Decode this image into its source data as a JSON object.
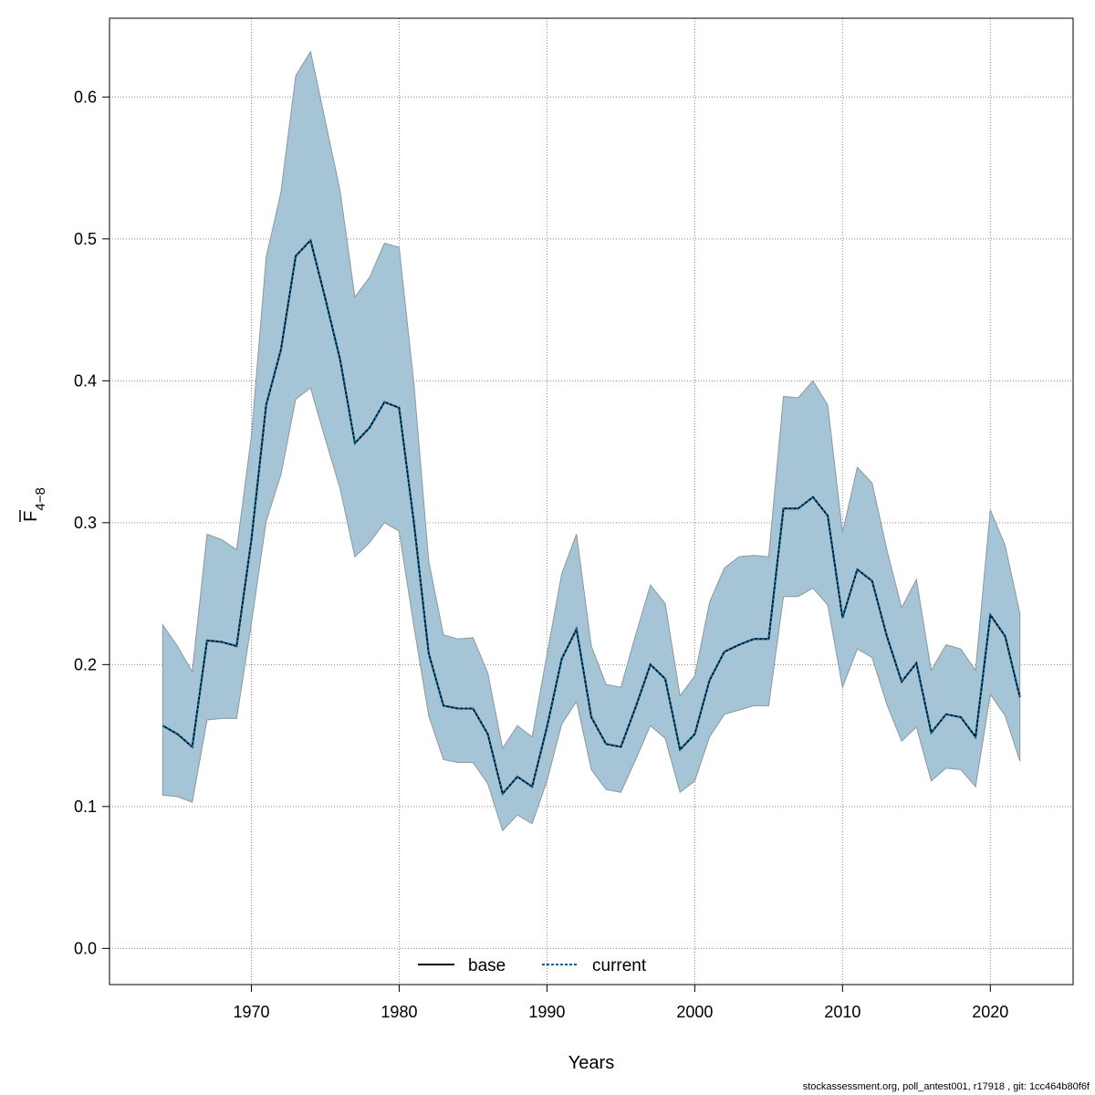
{
  "chart_data": {
    "type": "area",
    "xlabel": "Years",
    "ylabel_main": "F",
    "ylabel_sub": "4−8",
    "xlim": [
      1960.4,
      2025.6
    ],
    "ylim": [
      -0.0255,
      0.6555
    ],
    "xticks": [
      1970,
      1980,
      1990,
      2000,
      2010,
      2020
    ],
    "yticks": [
      0.0,
      0.1,
      0.2,
      0.3,
      0.4,
      0.5,
      0.6
    ],
    "grid": true,
    "band_color": "#a5c4d5",
    "band_edge_color": "#8a98a2",
    "x": [
      1964,
      1965,
      1966,
      1967,
      1968,
      1969,
      1970,
      1971,
      1972,
      1973,
      1974,
      1975,
      1976,
      1977,
      1978,
      1979,
      1980,
      1981,
      1982,
      1983,
      1984,
      1985,
      1986,
      1987,
      1988,
      1989,
      1990,
      1991,
      1992,
      1993,
      1994,
      1995,
      1996,
      1997,
      1998,
      1999,
      2000,
      2001,
      2002,
      2003,
      2004,
      2005,
      2006,
      2007,
      2008,
      2009,
      2010,
      2011,
      2012,
      2013,
      2014,
      2015,
      2016,
      2017,
      2018,
      2019,
      2020,
      2021,
      2022
    ],
    "series": [
      {
        "name": "base",
        "color": "#000000",
        "dash": "solid",
        "values": [
          0.157,
          0.151,
          0.142,
          0.217,
          0.216,
          0.213,
          0.288,
          0.383,
          0.422,
          0.488,
          0.499,
          0.458,
          0.415,
          0.356,
          0.367,
          0.385,
          0.381,
          0.3,
          0.208,
          0.171,
          0.169,
          0.169,
          0.151,
          0.109,
          0.121,
          0.114,
          0.156,
          0.204,
          0.225,
          0.163,
          0.144,
          0.142,
          0.17,
          0.2,
          0.19,
          0.14,
          0.151,
          0.189,
          0.209,
          0.214,
          0.218,
          0.218,
          0.31,
          0.31,
          0.318,
          0.305,
          0.233,
          0.267,
          0.259,
          0.22,
          0.188,
          0.201,
          0.152,
          0.165,
          0.163,
          0.149,
          0.235,
          0.22,
          0.177
        ]
      },
      {
        "name": "current",
        "color": "#00669c",
        "dash": "dotted",
        "values": [
          0.157,
          0.151,
          0.142,
          0.217,
          0.216,
          0.213,
          0.288,
          0.383,
          0.422,
          0.488,
          0.499,
          0.458,
          0.415,
          0.356,
          0.367,
          0.385,
          0.381,
          0.3,
          0.208,
          0.171,
          0.169,
          0.169,
          0.151,
          0.109,
          0.121,
          0.114,
          0.156,
          0.204,
          0.225,
          0.163,
          0.144,
          0.142,
          0.17,
          0.2,
          0.19,
          0.14,
          0.151,
          0.189,
          0.209,
          0.214,
          0.218,
          0.218,
          0.31,
          0.31,
          0.318,
          0.305,
          0.233,
          0.267,
          0.259,
          0.22,
          0.188,
          0.201,
          0.152,
          0.165,
          0.163,
          0.149,
          0.235,
          0.22,
          0.177
        ]
      }
    ],
    "band_upper": [
      0.228,
      0.213,
      0.195,
      0.292,
      0.288,
      0.281,
      0.361,
      0.487,
      0.533,
      0.615,
      0.632,
      0.583,
      0.534,
      0.459,
      0.473,
      0.497,
      0.494,
      0.398,
      0.273,
      0.221,
      0.218,
      0.219,
      0.194,
      0.141,
      0.157,
      0.149,
      0.207,
      0.264,
      0.292,
      0.213,
      0.186,
      0.184,
      0.221,
      0.256,
      0.243,
      0.178,
      0.192,
      0.244,
      0.268,
      0.276,
      0.277,
      0.276,
      0.389,
      0.388,
      0.4,
      0.383,
      0.293,
      0.339,
      0.328,
      0.281,
      0.24,
      0.26,
      0.196,
      0.214,
      0.211,
      0.196,
      0.309,
      0.284,
      0.236
    ],
    "band_lower": [
      0.108,
      0.107,
      0.103,
      0.161,
      0.162,
      0.162,
      0.229,
      0.301,
      0.334,
      0.387,
      0.395,
      0.359,
      0.324,
      0.276,
      0.286,
      0.3,
      0.294,
      0.227,
      0.164,
      0.133,
      0.131,
      0.131,
      0.116,
      0.083,
      0.094,
      0.088,
      0.118,
      0.158,
      0.174,
      0.126,
      0.112,
      0.11,
      0.133,
      0.157,
      0.148,
      0.11,
      0.118,
      0.149,
      0.165,
      0.168,
      0.171,
      0.171,
      0.248,
      0.248,
      0.254,
      0.242,
      0.184,
      0.211,
      0.205,
      0.172,
      0.146,
      0.156,
      0.118,
      0.127,
      0.126,
      0.114,
      0.179,
      0.164,
      0.132
    ],
    "legend": {
      "position": "bottom",
      "entries": [
        "base",
        "current"
      ]
    }
  },
  "footer": "stockassessment.org, poll_antest001, r17918 , git: 1cc464b80f6f"
}
